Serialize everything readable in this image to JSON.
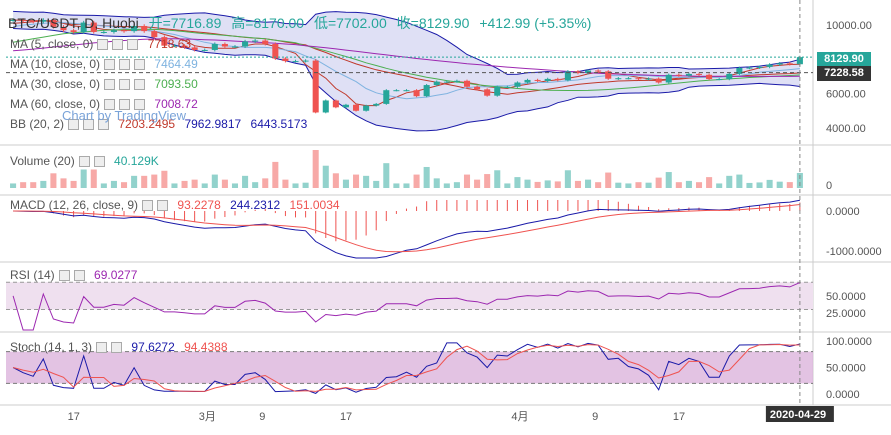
{
  "header": {
    "symbol": "BTC/USDT, D, Huobi",
    "open": "开=7716.89",
    "high": "高=8170.00",
    "low": "低=7702.00",
    "close": "收=8129.90",
    "change": "+412.99 (+5.35%)"
  },
  "watermark": "Chart by TradingView",
  "indicators": [
    {
      "label": "MA (5, close, 0)",
      "values": [
        "7718.63"
      ],
      "colors": [
        "#c0392b"
      ]
    },
    {
      "label": "MA (10, close, 0)",
      "values": [
        "7464.49"
      ],
      "colors": [
        "#7fb3e0"
      ]
    },
    {
      "label": "MA (30, close, 0)",
      "values": [
        "7093.50"
      ],
      "colors": [
        "#4caf50"
      ]
    },
    {
      "label": "MA (60, close, 0)",
      "values": [
        "7008.72"
      ],
      "colors": [
        "#9c27b0"
      ]
    },
    {
      "label": "BB (20, 2)",
      "values": [
        "7203.2495",
        "7962.9817",
        "6443.5173"
      ],
      "colors": [
        "#c0392b",
        "#1a1aa8",
        "#1a1aa8"
      ]
    }
  ],
  "panes": {
    "volume": {
      "label": "Volume (20)",
      "value": "40.129K"
    },
    "macd": {
      "label": "MACD (12, 26, close, 9)",
      "values": [
        "93.2278",
        "244.2312",
        "151.0034"
      ]
    },
    "rsi": {
      "label": "RSI (14)",
      "value": "69.0277"
    },
    "stoch": {
      "label": "Stoch (14, 1, 3)",
      "values": [
        "97.6272",
        "94.4388"
      ]
    }
  },
  "axes": {
    "price_ticks": [
      "10000.00",
      "8000.00",
      "6000.00",
      "4000.00"
    ],
    "volume_tick": "0",
    "macd_ticks": [
      "0.0000",
      "-1000.0000"
    ],
    "rsi_ticks": [
      "50.0000",
      "25.0000"
    ],
    "stoch_ticks": [
      "100.0000",
      "50.0000",
      "0.0000"
    ],
    "x_ticks": [
      "17",
      "3月",
      "9",
      "17",
      "4月",
      "9",
      "17"
    ],
    "date_tag": "2020-04-29",
    "price_tag": "8129.90",
    "ma_tag": "7228.58"
  },
  "colors": {
    "up": "#26a69a",
    "down": "#ef5350",
    "bb_fill": "#d7d8f2",
    "rsi_fill": "#efe0ef",
    "stoch_fill": "#dcb4dc"
  },
  "chart_data": {
    "type": "candlestick",
    "title": "BTC/USDT, D, Huobi",
    "ylim": [
      3000,
      11000
    ],
    "x": [
      "2020-02-11",
      "2020-02-12",
      "2020-02-13",
      "2020-02-14",
      "2020-02-15",
      "2020-02-16",
      "2020-02-17",
      "2020-02-18",
      "2020-02-19",
      "2020-02-20",
      "2020-02-21",
      "2020-02-22",
      "2020-02-23",
      "2020-02-24",
      "2020-02-25",
      "2020-02-26",
      "2020-02-27",
      "2020-02-28",
      "2020-02-29",
      "2020-03-01",
      "2020-03-02",
      "2020-03-03",
      "2020-03-04",
      "2020-03-05",
      "2020-03-06",
      "2020-03-07",
      "2020-03-08",
      "2020-03-09",
      "2020-03-10",
      "2020-03-11",
      "2020-03-12",
      "2020-03-13",
      "2020-03-14",
      "2020-03-15",
      "2020-03-16",
      "2020-03-17",
      "2020-03-18",
      "2020-03-19",
      "2020-03-20",
      "2020-03-21",
      "2020-03-22",
      "2020-03-23",
      "2020-03-24",
      "2020-03-25",
      "2020-03-26",
      "2020-03-27",
      "2020-03-28",
      "2020-03-29",
      "2020-03-30",
      "2020-03-31",
      "2020-04-01",
      "2020-04-02",
      "2020-04-03",
      "2020-04-04",
      "2020-04-05",
      "2020-04-06",
      "2020-04-07",
      "2020-04-08",
      "2020-04-09",
      "2020-04-10",
      "2020-04-11",
      "2020-04-12",
      "2020-04-13",
      "2020-04-14",
      "2020-04-15",
      "2020-04-16",
      "2020-04-17",
      "2020-04-18",
      "2020-04-19",
      "2020-04-20",
      "2020-04-21",
      "2020-04-22",
      "2020-04-23",
      "2020-04-24",
      "2020-04-25",
      "2020-04-26",
      "2020-04-27",
      "2020-04-28",
      "2020-04-29"
    ],
    "close": [
      10300,
      10250,
      10200,
      10300,
      9900,
      9700,
      9600,
      10150,
      9600,
      9600,
      9700,
      9650,
      9950,
      9650,
      9300,
      8800,
      8800,
      8700,
      8550,
      8550,
      8900,
      8750,
      8750,
      9050,
      9100,
      8900,
      8050,
      7900,
      7900,
      7930,
      4900,
      5600,
      5200,
      5350,
      5000,
      5300,
      5400,
      6200,
      6200,
      6200,
      5850,
      6500,
      6700,
      6700,
      6750,
      6400,
      6250,
      5880,
      6400,
      6400,
      6650,
      6800,
      6740,
      6860,
      6780,
      7300,
      7200,
      7350,
      7300,
      6870,
      6900,
      6900,
      6850,
      6880,
      6650,
      7100,
      7050,
      7150,
      7100,
      6850,
      6850,
      7150,
      7500,
      7520,
      7560,
      7700,
      7770,
      7717,
      8130
    ],
    "series": [
      {
        "name": "MA5",
        "values": [
          10100,
          10150,
          10200,
          10250,
          10250,
          10100,
          9950,
          9900,
          9850,
          9750,
          9720,
          9700,
          9700,
          9700,
          9650,
          9450,
          9300,
          9100,
          8800,
          8700,
          8650,
          8650,
          8650,
          8800,
          8900,
          8900,
          8750,
          8550,
          8350,
          7700,
          7300,
          6900,
          6300,
          5950,
          5400,
          5300,
          5300,
          5600,
          5800,
          6050,
          6150,
          6300,
          6450,
          6600,
          6700,
          6650,
          6550,
          6400,
          6350,
          6300,
          6450,
          6550,
          6650,
          6750,
          6800,
          6900,
          7000,
          7150,
          7250,
          7200,
          7150,
          7050,
          6950,
          6880,
          6800,
          6850,
          6900,
          6950,
          7000,
          6980,
          6970,
          7050,
          7200,
          7350,
          7500,
          7600,
          7650,
          7700,
          7718
        ]
      },
      {
        "name": "MA10",
        "values": [
          9900,
          10000,
          10050,
          10100,
          10150,
          10150,
          10100,
          10050,
          10000,
          9950,
          9900,
          9800,
          9750,
          9700,
          9650,
          9550,
          9450,
          9300,
          9150,
          9000,
          8900,
          8800,
          8750,
          8700,
          8700,
          8700,
          8650,
          8550,
          8450,
          8200,
          8000,
          7650,
          7300,
          7000,
          6700,
          6300,
          6050,
          5900,
          5800,
          5700,
          5750,
          5800,
          5900,
          6000,
          6200,
          6350,
          6400,
          6400,
          6450,
          6450,
          6550,
          6600,
          6650,
          6650,
          6700,
          6750,
          6800,
          6900,
          7000,
          7050,
          7050,
          7050,
          7050,
          7050,
          7000,
          6980,
          6950,
          6950,
          6950,
          6950,
          6950,
          7000,
          7050,
          7150,
          7250,
          7300,
          7350,
          7400,
          7464
        ]
      },
      {
        "name": "MA30",
        "values": [
          9000,
          9100,
          9200,
          9300,
          9400,
          9500,
          9550,
          9600,
          9650,
          9700,
          9720,
          9740,
          9750,
          9760,
          9750,
          9720,
          9680,
          9620,
          9560,
          9500,
          9450,
          9400,
          9350,
          9300,
          9250,
          9200,
          9120,
          9050,
          8970,
          8800,
          8650,
          8500,
          8330,
          8170,
          7990,
          7800,
          7640,
          7480,
          7330,
          7200,
          7080,
          6960,
          6860,
          6760,
          6680,
          6600,
          6520,
          6460,
          6400,
          6350,
          6300,
          6260,
          6220,
          6200,
          6190,
          6180,
          6180,
          6190,
          6210,
          6240,
          6280,
          6330,
          6380,
          6440,
          6500,
          6560,
          6620,
          6680,
          6740,
          6780,
          6820,
          6860,
          6900,
          6940,
          6970,
          7000,
          7030,
          7060,
          7093
        ]
      },
      {
        "name": "MA60",
        "values": [
          8500,
          8550,
          8600,
          8660,
          8720,
          8780,
          8840,
          8900,
          8960,
          9010,
          9060,
          9100,
          9140,
          9170,
          9190,
          9200,
          9200,
          9190,
          9170,
          9150,
          9130,
          9100,
          9070,
          9040,
          9010,
          8980,
          8940,
          8900,
          8860,
          8800,
          8740,
          8680,
          8610,
          8540,
          8470,
          8400,
          8330,
          8260,
          8190,
          8120,
          8050,
          7990,
          7930,
          7870,
          7810,
          7750,
          7700,
          7650,
          7600,
          7550,
          7500,
          7460,
          7420,
          7380,
          7340,
          7300,
          7260,
          7220,
          7190,
          7160,
          7140,
          7120,
          7100,
          7080,
          7060,
          7050,
          7040,
          7030,
          7020,
          7015,
          7010,
          7008,
          7007,
          7006,
          7006,
          7007,
          7007,
          7008,
          7009
        ]
      }
    ]
  }
}
